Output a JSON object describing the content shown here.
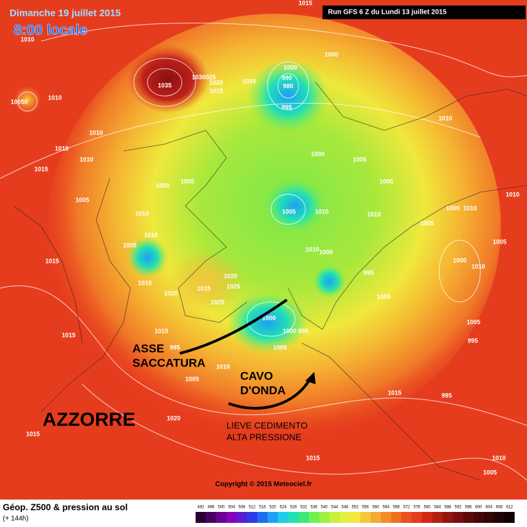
{
  "header": {
    "date": "Dimanche 19 juillet 2015",
    "time": "8:00 locale",
    "run": "Run GFS 6 Z du Lundi 13 juillet 2015"
  },
  "annotations": {
    "asse": "ASSE",
    "saccatura": "SACCATURA",
    "cavo": "CAVO",
    "onda": "D'ONDA",
    "azzorre": "AZZORRE",
    "lieve": "LIEVE CEDIMENTO",
    "alta": "ALTA PRESSIONE"
  },
  "isobar_labels": [
    "1015",
    "1010",
    "1035",
    "1030025",
    "1020",
    "1015",
    "1000",
    "1000",
    "990",
    "980",
    "1015",
    "995",
    "10050",
    "1010",
    "1010",
    "1010",
    "1010",
    "1010",
    "1000",
    "1005",
    "1015",
    "1005",
    "1000",
    "1005",
    "1010",
    "1005",
    "1010",
    "1005",
    "1010",
    "1010",
    "1000",
    "1010",
    "1005",
    "1010",
    "1005",
    "1010",
    "1000",
    "1005",
    "1000",
    "1010",
    "1015",
    "995",
    "1015",
    "1020",
    "1025",
    "1015",
    "1020",
    "1025",
    "1000",
    "1000",
    "1000",
    "995",
    "1005",
    "995",
    "1015",
    "1015",
    "995",
    "1005",
    "1010",
    "1005",
    "1015",
    "995",
    "1020",
    "1015",
    "1015",
    "1010",
    "1005"
  ],
  "copyright": "Copyright © 2015 Meteociel.fr",
  "footer": {
    "title": "Géop. Z500 & pression au sol",
    "subtitle": "(+ 144h)"
  },
  "legend": {
    "levels": [
      492,
      496,
      500,
      504,
      508,
      512,
      516,
      520,
      524,
      528,
      532,
      536,
      540,
      544,
      548,
      552,
      556,
      560,
      564,
      568,
      572,
      576,
      580,
      584,
      588,
      592,
      596,
      600,
      604,
      608,
      612
    ],
    "colors": [
      "#2a0030",
      "#4b0060",
      "#6a0090",
      "#8a00b8",
      "#5a1ed0",
      "#2e3ce8",
      "#1e6ef0",
      "#1ea0f5",
      "#1ecde6",
      "#22e0b4",
      "#3ce878",
      "#6ef050",
      "#9cf040",
      "#c8f03c",
      "#e6f03c",
      "#f5e63c",
      "#f5c83c",
      "#f5aa32",
      "#f58c28",
      "#f06e1e",
      "#eb501e",
      "#e63c1e",
      "#d22814",
      "#b41e10",
      "#961410",
      "#7a0e0e",
      "#5c0a0a",
      "#440808",
      "#300606",
      "#200404",
      "#100202"
    ]
  }
}
